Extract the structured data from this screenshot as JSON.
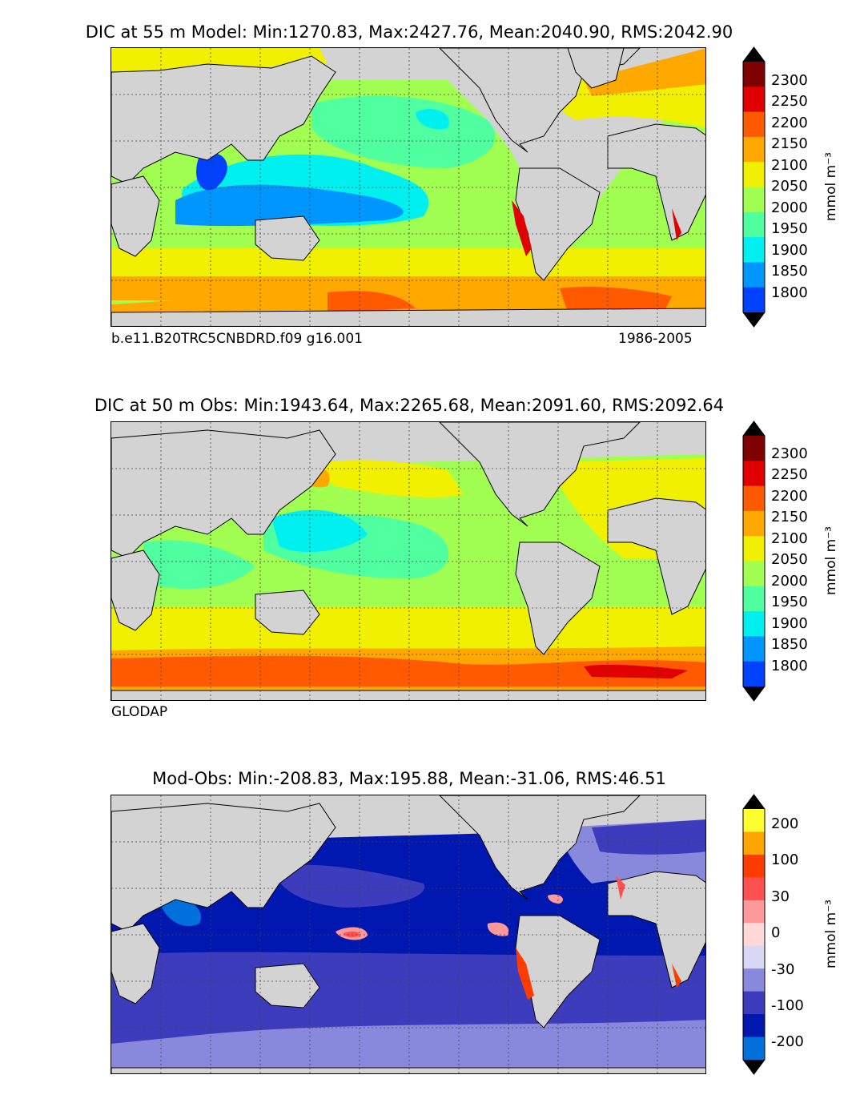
{
  "panels": [
    {
      "title": "DIC at 55 m Model: Min:1270.83, Max:2427.76, Mean:2040.90, RMS:2042.90",
      "caption_left": "b.e11.B20TRC5CNBDRD.f09 g16.001",
      "caption_right": "1986-2005",
      "colorbar": {
        "units": "mmol m⁻³",
        "ticks": [
          "2300",
          "2250",
          "2200",
          "2150",
          "2100",
          "2050",
          "2000",
          "1950",
          "1900",
          "1850",
          "1800"
        ],
        "colors": [
          "#7f0000",
          "#e00000",
          "#ff5a00",
          "#ffa800",
          "#f0f000",
          "#a0ff50",
          "#50ffa0",
          "#00f0f0",
          "#0096ff",
          "#0040ff",
          "#0000e0",
          "#00007f"
        ]
      }
    },
    {
      "title": "DIC at 50 m Obs: Min:1943.64, Max:2265.68, Mean:2091.60, RMS:2092.64",
      "caption_left": "GLODAP",
      "colorbar": {
        "units": "mmol m⁻³",
        "ticks": [
          "2300",
          "2250",
          "2200",
          "2150",
          "2100",
          "2050",
          "2000",
          "1950",
          "1900",
          "1850",
          "1800"
        ],
        "colors": [
          "#7f0000",
          "#e00000",
          "#ff5a00",
          "#ffa800",
          "#f0f000",
          "#a0ff50",
          "#50ffa0",
          "#00f0f0",
          "#0096ff",
          "#0040ff",
          "#0000e0",
          "#00007f"
        ]
      }
    },
    {
      "title": "Mod-Obs: Min:-208.83, Max:195.88, Mean:-31.06, RMS:46.51",
      "colorbar": {
        "units": "mmol m⁻³",
        "ticks": [
          "200",
          "100",
          "30",
          "0",
          "-30",
          "-100",
          "-200"
        ],
        "colors": [
          "#ffff30",
          "#ffa500",
          "#ff3c00",
          "#ff5050",
          "#ff9898",
          "#ffd8d8",
          "#d8d8f4",
          "#8888dd",
          "#3c3cbc",
          "#0018b0",
          "#0070dd",
          "#00b8f0",
          "#00ffff"
        ]
      }
    }
  ]
}
